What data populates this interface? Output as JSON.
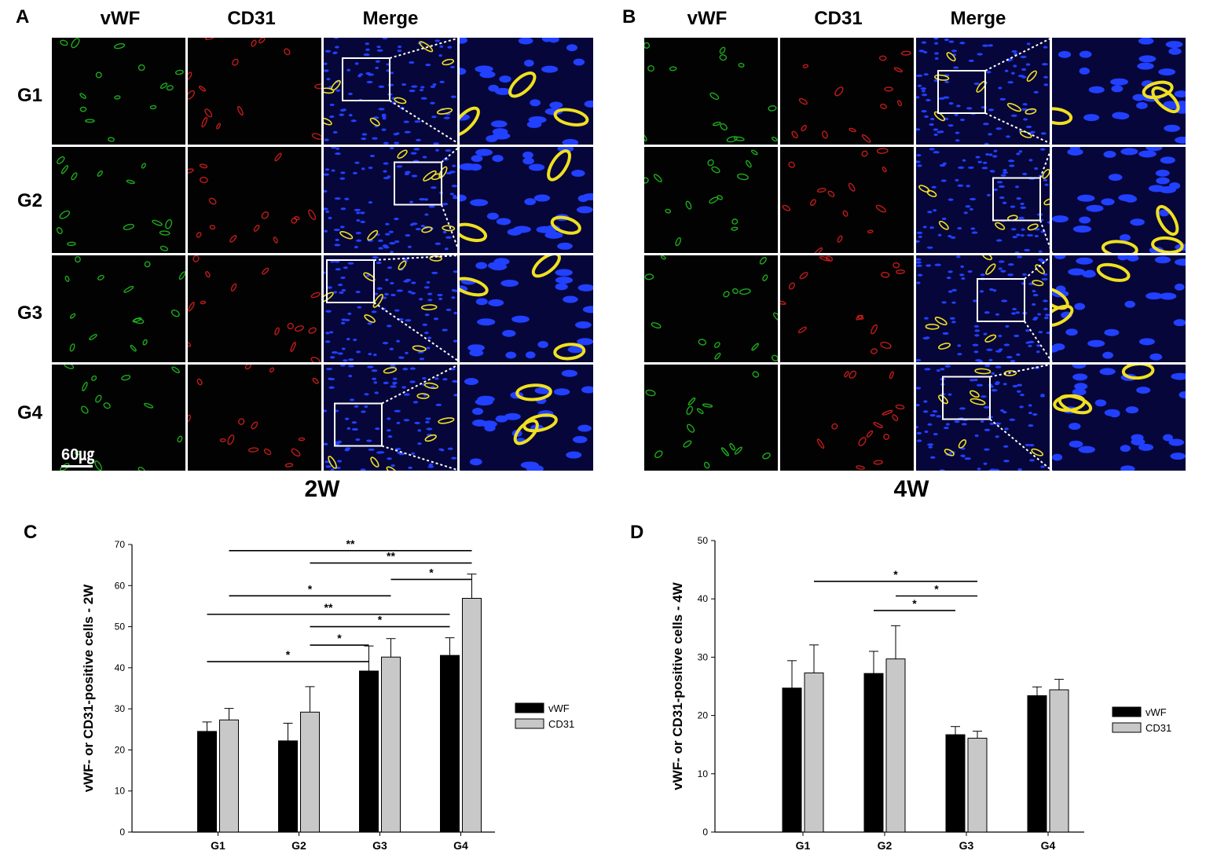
{
  "figure": {
    "panel_labels": {
      "A": "A",
      "B": "B",
      "C": "C",
      "D": "D"
    },
    "column_headers": [
      "vWF",
      "CD31",
      "Merge"
    ],
    "row_labels": [
      "G1",
      "G2",
      "G3",
      "G4"
    ],
    "scale_bar": "60㎍",
    "time_labels": {
      "A": "2W",
      "B": "4W"
    },
    "channel_colors": {
      "vWF": "#22c722",
      "CD31": "#e02020",
      "nuclei": "#2240ff",
      "merge": "#f0e020"
    }
  },
  "chart_data": [
    {
      "panel": "C",
      "type": "bar",
      "categories": [
        "G1",
        "G2",
        "G3",
        "G4"
      ],
      "series": [
        {
          "name": "vWF",
          "color": "#000000",
          "values": [
            24.5,
            22.2,
            39.2,
            43.0
          ],
          "errors": [
            2.3,
            4.3,
            6.1,
            4.3
          ]
        },
        {
          "name": "CD31",
          "color": "#c8c8c8",
          "values": [
            27.3,
            29.2,
            42.6,
            56.9
          ],
          "errors": [
            2.8,
            6.2,
            4.5,
            5.9
          ]
        }
      ],
      "ylabel": "vWF- or CD31-positive cells - 2W",
      "ylim": [
        0,
        70
      ],
      "yticks": [
        0,
        10,
        20,
        30,
        40,
        50,
        60,
        70
      ],
      "legend_position": "right",
      "significance": [
        {
          "from": [
            "G1",
            "CD31"
          ],
          "to": [
            "G4",
            "CD31"
          ],
          "level": 68.5,
          "label": "**"
        },
        {
          "from": [
            "G2",
            "CD31"
          ],
          "to": [
            "G4",
            "CD31"
          ],
          "level": 65.5,
          "label": "**"
        },
        {
          "from": [
            "G3",
            "CD31"
          ],
          "to": [
            "G4",
            "CD31"
          ],
          "level": 61.5,
          "label": "*"
        },
        {
          "from": [
            "G1",
            "CD31"
          ],
          "to": [
            "G3",
            "CD31"
          ],
          "level": 57.5,
          "label": "*"
        },
        {
          "from": [
            "G1",
            "vWF"
          ],
          "to": [
            "G4",
            "vWF"
          ],
          "level": 53.0,
          "label": "**"
        },
        {
          "from": [
            "G2",
            "CD31"
          ],
          "to": [
            "G4",
            "vWF"
          ],
          "level": 50.0,
          "label": "*"
        },
        {
          "from": [
            "G2",
            "CD31"
          ],
          "to": [
            "G3",
            "vWF"
          ],
          "level": 45.5,
          "label": "*"
        },
        {
          "from": [
            "G1",
            "vWF"
          ],
          "to": [
            "G3",
            "vWF"
          ],
          "level": 41.5,
          "label": "*"
        }
      ]
    },
    {
      "panel": "D",
      "type": "bar",
      "categories": [
        "G1",
        "G2",
        "G3",
        "G4"
      ],
      "series": [
        {
          "name": "vWF",
          "color": "#000000",
          "values": [
            24.7,
            27.2,
            16.7,
            23.4
          ],
          "errors": [
            4.7,
            3.8,
            1.4,
            1.5
          ]
        },
        {
          "name": "CD31",
          "color": "#c8c8c8",
          "values": [
            27.3,
            29.7,
            16.1,
            24.4
          ],
          "errors": [
            4.8,
            5.7,
            1.2,
            1.8
          ]
        }
      ],
      "ylabel": "vWF- or CD31-positive cells - 4W",
      "ylim": [
        0,
        50
      ],
      "yticks": [
        0,
        10,
        20,
        30,
        40,
        50
      ],
      "legend_position": "right",
      "significance": [
        {
          "from": [
            "G1",
            "CD31"
          ],
          "to": [
            "G3",
            "CD31"
          ],
          "level": 43.0,
          "label": "*"
        },
        {
          "from": [
            "G2",
            "CD31"
          ],
          "to": [
            "G3",
            "CD31"
          ],
          "level": 40.5,
          "label": "*"
        },
        {
          "from": [
            "G2",
            "vWF"
          ],
          "to": [
            "G3",
            "vWF"
          ],
          "level": 38.0,
          "label": "*"
        }
      ]
    }
  ]
}
